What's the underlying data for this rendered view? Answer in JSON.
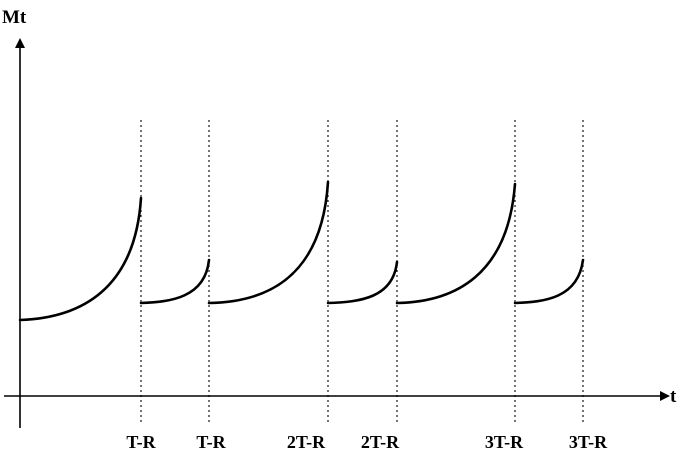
{
  "diagram": {
    "y_axis_label": "Mt",
    "x_axis_label": "t",
    "markers": [
      {
        "label": "T-R"
      },
      {
        "label": "T-R"
      },
      {
        "label": "2T-R"
      },
      {
        "label": "2T-R"
      },
      {
        "label": "3T-R"
      },
      {
        "label": "3T-R"
      }
    ],
    "colors": {
      "line": "#000000",
      "background": "#ffffff"
    }
  }
}
